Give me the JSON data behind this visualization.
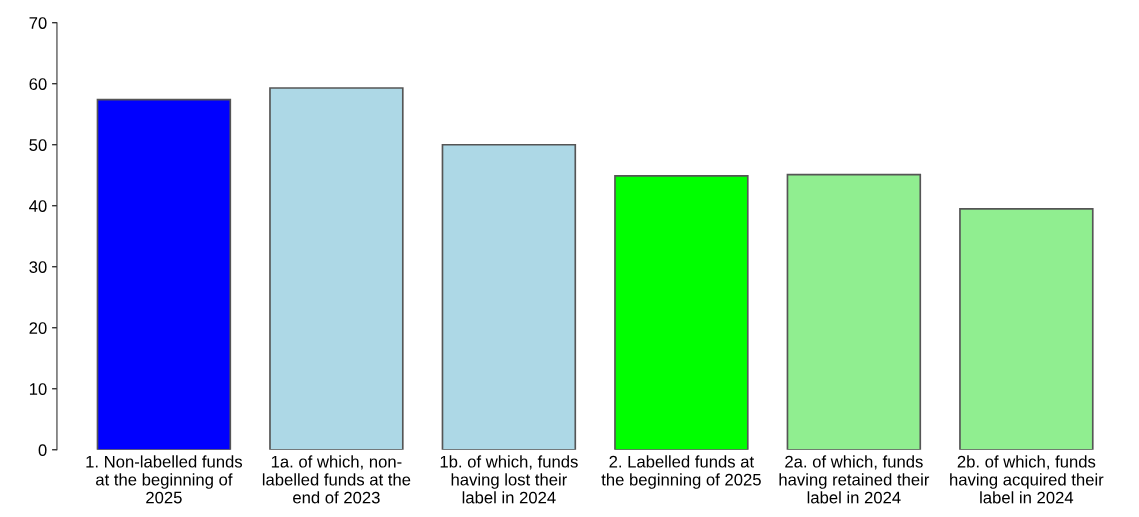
{
  "chart_data": {
    "type": "bar",
    "categories": [
      "1. Non-labelled funds\nat the beginning of\n2025",
      "1a. of which, non-\nlabelled funds at the\nend of 2023",
      "1b. of which, funds\nhaving lost their\nlabel in 2024",
      "2. Labelled funds at\nthe beginning of 2025",
      "2a. of which, funds\nhaving retained their\nlabel in 2024",
      "2b. of which, funds\nhaving acquired their\nlabel in 2024"
    ],
    "values": [
      57.4,
      59.3,
      50.0,
      44.9,
      45.1,
      39.5
    ],
    "colors": [
      "#0000ff",
      "#add8e6",
      "#add8e6",
      "#00ff00",
      "#90ee90",
      "#90ee90"
    ],
    "ylim": [
      0,
      70
    ],
    "yticks": [
      0,
      10,
      20,
      30,
      40,
      50,
      60,
      70
    ],
    "grid": false
  }
}
